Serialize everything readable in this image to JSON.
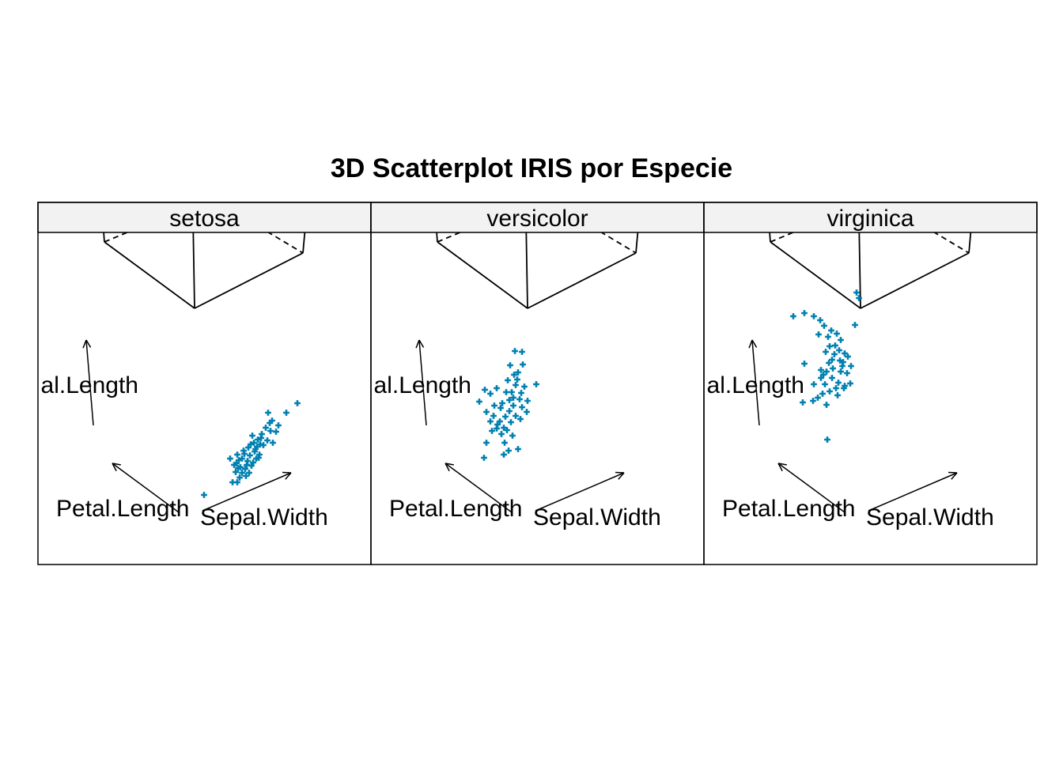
{
  "colors": {
    "point": "#0080b0",
    "strip_bg": "#f2f2f2",
    "frame": "#000000",
    "background": "#ffffff"
  },
  "chart_data": {
    "type": "scatter",
    "title": "3D Scatterplot IRIS por Especie",
    "panels": [
      {
        "label": "setosa",
        "axis_labels": {
          "vertical": "al.Length",
          "left": "Petal.Length",
          "right": "Sepal.Width"
        },
        "points_projected_estimate": [
          [
            258,
            626
          ],
          [
            376,
            510
          ],
          [
            362,
            522
          ],
          [
            344,
            532
          ],
          [
            339,
            522
          ],
          [
            352,
            538
          ],
          [
            349,
            546
          ],
          [
            331,
            549
          ],
          [
            326,
            556
          ],
          [
            321,
            560
          ],
          [
            317,
            562
          ],
          [
            329,
            562
          ],
          [
            322,
            571
          ],
          [
            314,
            566
          ],
          [
            309,
            574
          ],
          [
            316,
            576
          ],
          [
            306,
            580
          ],
          [
            302,
            582
          ],
          [
            299,
            586
          ],
          [
            301,
            592
          ],
          [
            296,
            588
          ],
          [
            306,
            598
          ],
          [
            294,
            610
          ],
          [
            300,
            610
          ],
          [
            311,
            602
          ],
          [
            304,
            591
          ],
          [
            318,
            589
          ],
          [
            324,
            580
          ],
          [
            328,
            575
          ],
          [
            333,
            563
          ],
          [
            338,
            557
          ],
          [
            313,
            583
          ],
          [
            298,
            597
          ],
          [
            291,
            580
          ],
          [
            308,
            570
          ],
          [
            319,
            551
          ],
          [
            342,
            545
          ],
          [
            336,
            541
          ],
          [
            330,
            554
          ],
          [
            310,
            593
          ],
          [
            303,
            604
          ],
          [
            315,
            598
          ],
          [
            323,
            568
          ],
          [
            327,
            579
          ],
          [
            320,
            585
          ],
          [
            345,
            560
          ],
          [
            300,
            575
          ],
          [
            312,
            588
          ],
          [
            325,
            565
          ],
          [
            341,
            535
          ]
        ]
      },
      {
        "label": "versicolor",
        "axis_labels": {
          "vertical": "al.Length",
          "left": "Petal.Length",
          "right": "Sepal.Width"
        },
        "points_projected_estimate": [
          [
            651,
            444
          ],
          [
            660,
            445
          ],
          [
            645,
            462
          ],
          [
            661,
            461
          ],
          [
            655,
            471
          ],
          [
            642,
            481
          ],
          [
            652,
            487
          ],
          [
            663,
            489
          ],
          [
            678,
            486
          ],
          [
            628,
            491
          ],
          [
            640,
            496
          ],
          [
            649,
            503
          ],
          [
            657,
            505
          ],
          [
            613,
            493
          ],
          [
            620,
            498
          ],
          [
            606,
            508
          ],
          [
            615,
            521
          ],
          [
            624,
            526
          ],
          [
            632,
            533
          ],
          [
            637,
            541
          ],
          [
            628,
            542
          ],
          [
            649,
            513
          ],
          [
            660,
            515
          ],
          [
            666,
            521
          ],
          [
            644,
            520
          ],
          [
            639,
            527
          ],
          [
            652,
            526
          ],
          [
            612,
            579
          ],
          [
            637,
            575
          ],
          [
            643,
            570
          ],
          [
            655,
            568
          ],
          [
            647,
            496
          ],
          [
            635,
            510
          ],
          [
            659,
            497
          ],
          [
            646,
            534
          ],
          [
            633,
            516
          ],
          [
            641,
            544
          ],
          [
            654,
            480
          ],
          [
            625,
            513
          ],
          [
            667,
            507
          ],
          [
            629,
            537
          ],
          [
            622,
            545
          ],
          [
            648,
            551
          ],
          [
            615,
            560
          ],
          [
            638,
            560
          ],
          [
            650,
            474
          ],
          [
            658,
            530
          ],
          [
            634,
            549
          ],
          [
            620,
            533
          ],
          [
            644,
            506
          ]
        ]
      },
      {
        "label": "virginica",
        "axis_labels": {
          "vertical": "al.Length",
          "left": "Petal.Length",
          "right": "Sepal.Width"
        },
        "points_projected_estimate": [
          [
            1083,
            370
          ],
          [
            1086,
            377
          ],
          [
            1003,
            400
          ],
          [
            1017,
            396
          ],
          [
            1029,
            400
          ],
          [
            1037,
            405
          ],
          [
            1042,
            412
          ],
          [
            1051,
            418
          ],
          [
            1047,
            426
          ],
          [
            1058,
            422
          ],
          [
            1063,
            430
          ],
          [
            1056,
            437
          ],
          [
            1061,
            443
          ],
          [
            1068,
            447
          ],
          [
            1072,
            451
          ],
          [
            1066,
            458
          ],
          [
            1076,
            463
          ],
          [
            1081,
            411
          ],
          [
            1045,
            470
          ],
          [
            1052,
            478
          ],
          [
            1060,
            484
          ],
          [
            1068,
            488
          ],
          [
            1049,
            495
          ],
          [
            1040,
            498
          ],
          [
            1034,
            503
          ],
          [
            1017,
            460
          ],
          [
            1038,
            468
          ],
          [
            1048,
            459
          ],
          [
            1065,
            463
          ],
          [
            1075,
            485
          ],
          [
            1067,
            491
          ],
          [
            1059,
            500
          ],
          [
            1045,
            512
          ],
          [
            1028,
            507
          ],
          [
            1015,
            509
          ],
          [
            1046,
            556
          ],
          [
            1055,
            448
          ],
          [
            1044,
            445
          ],
          [
            1052,
            455
          ],
          [
            1063,
            470
          ],
          [
            1071,
            472
          ],
          [
            1029,
            486
          ],
          [
            1038,
            478
          ],
          [
            1043,
            486
          ],
          [
            1057,
            491
          ],
          [
            1049,
            438
          ],
          [
            1035,
            423
          ],
          [
            1062,
            456
          ],
          [
            1041,
            474
          ],
          [
            1053,
            466
          ]
        ]
      }
    ]
  }
}
